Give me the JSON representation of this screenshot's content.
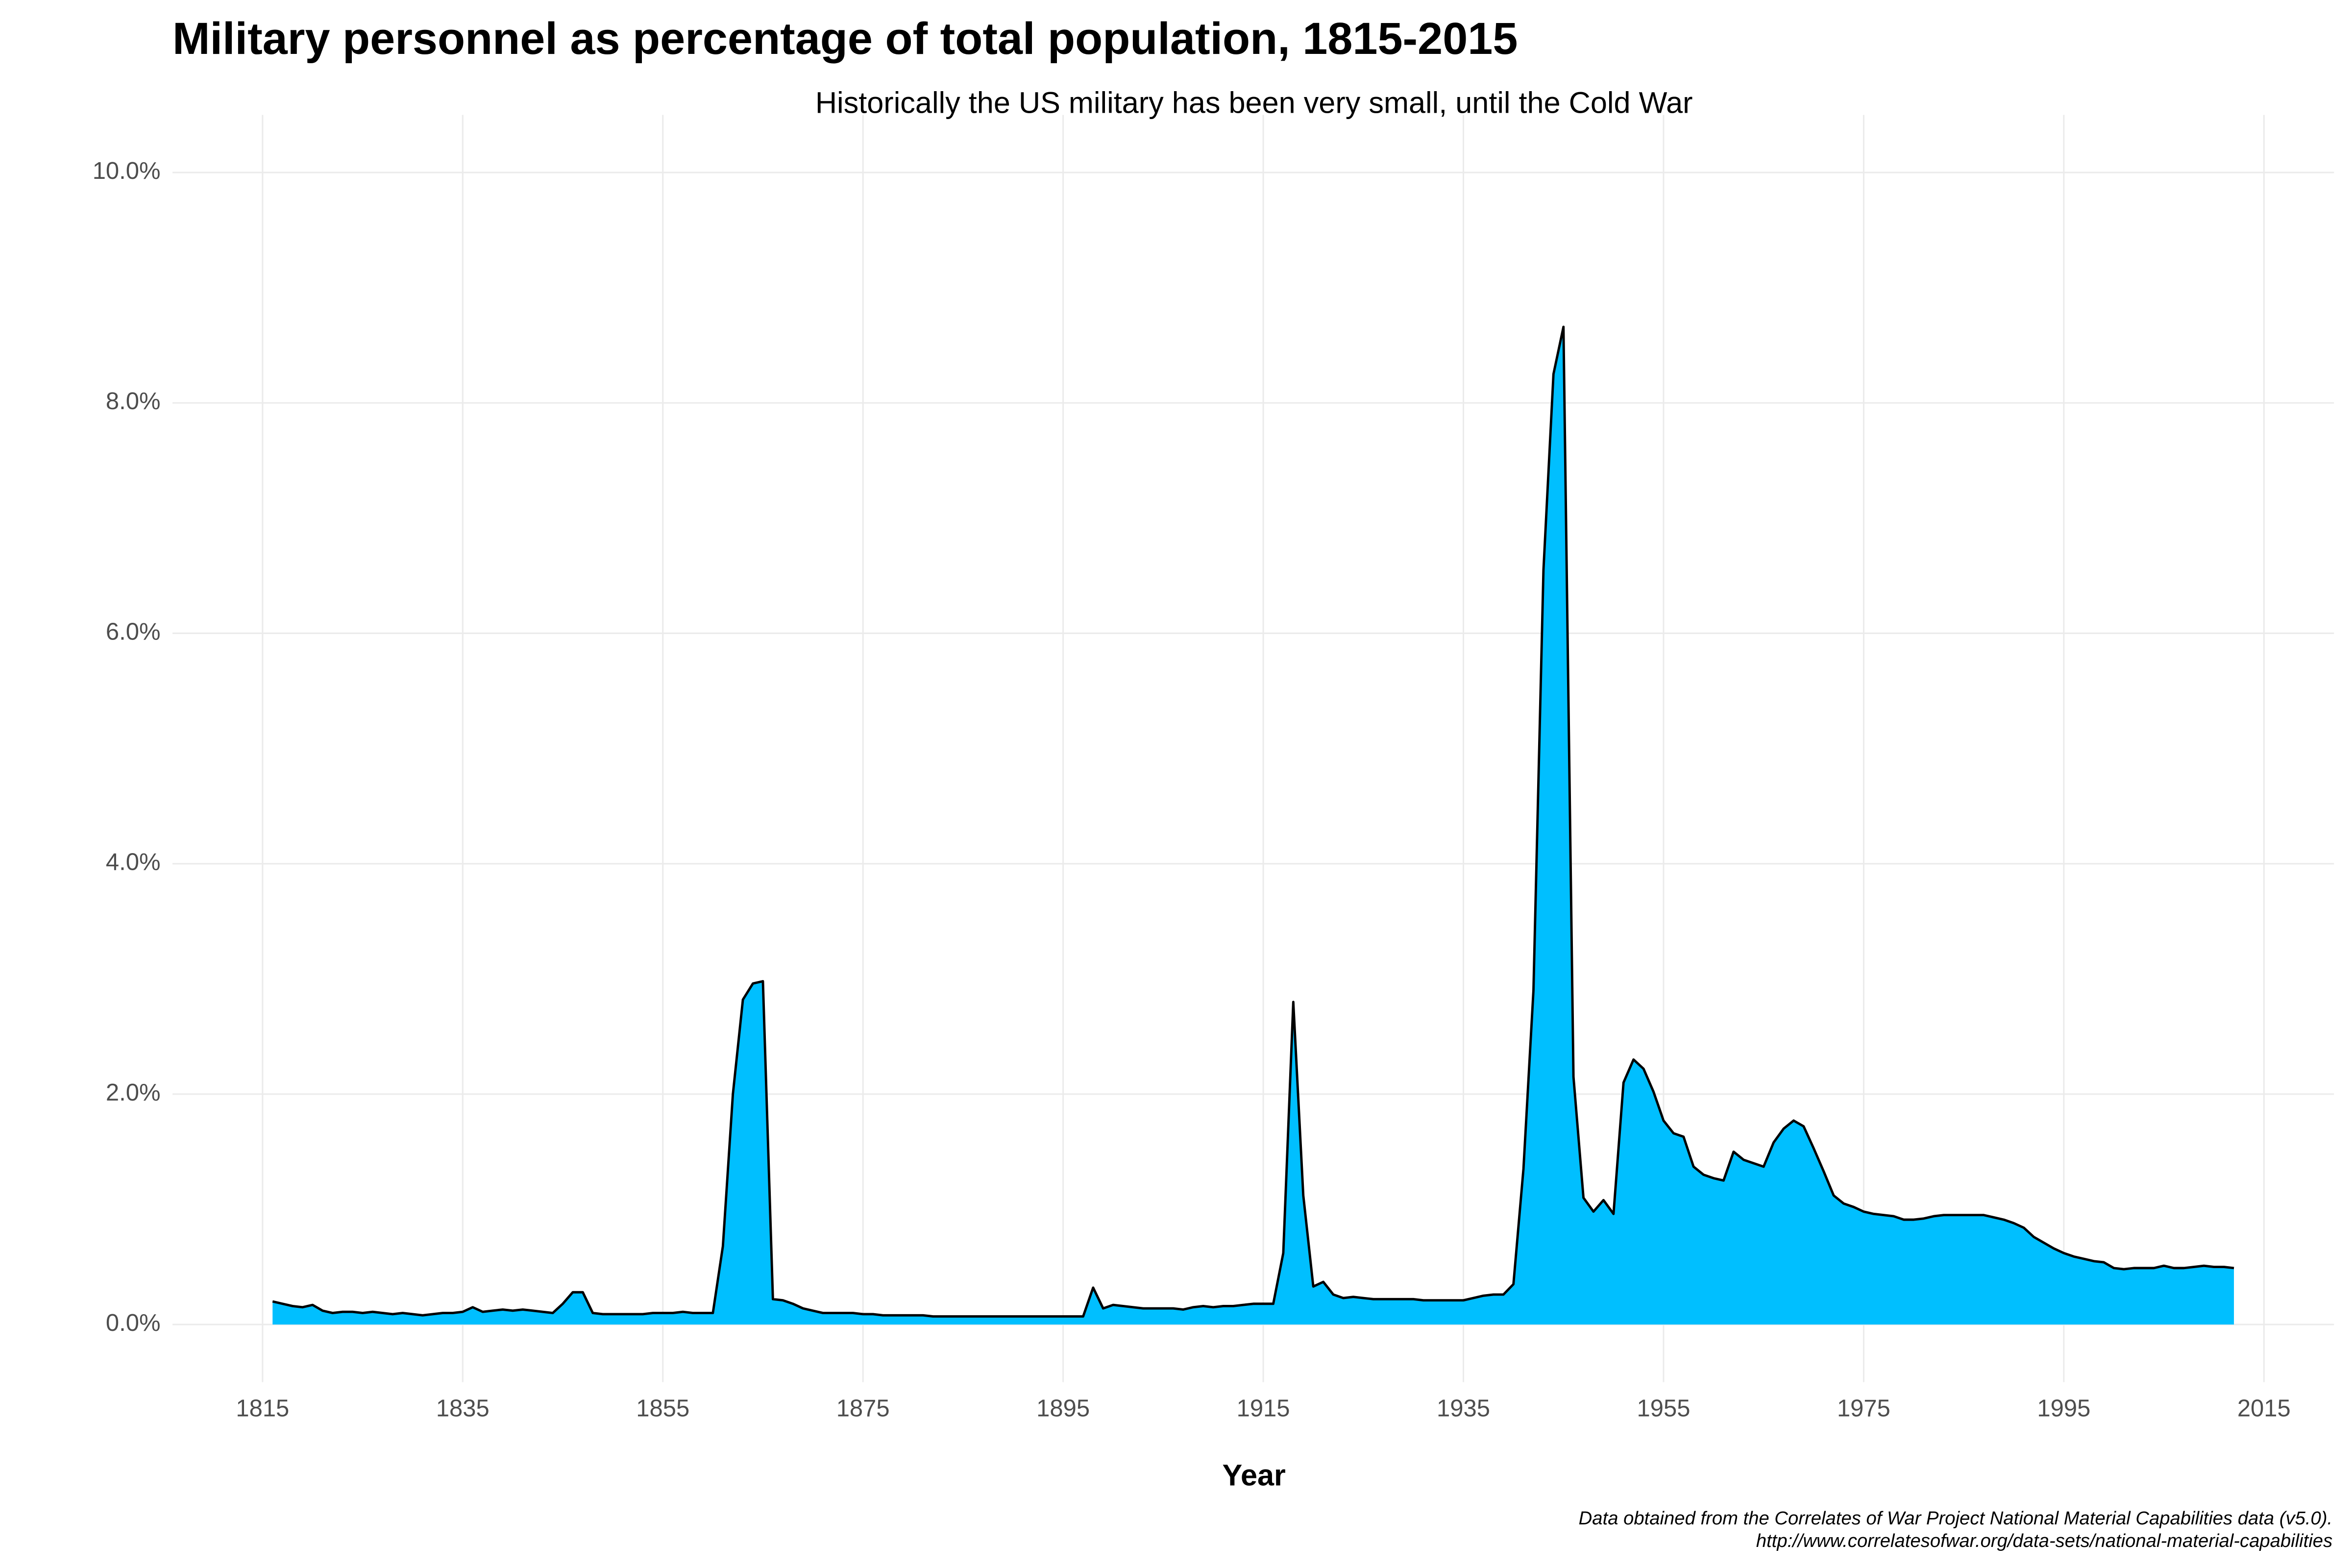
{
  "chart_data": {
    "type": "area",
    "title": "Military personnel as percentage of total population, 1815-2015",
    "subtitle": "Historically the US military has been very small, until the Cold War",
    "x_label": "Year",
    "caption": [
      "Data obtained from the Correlates of War Project National Material Capabilities data (v5.0).",
      "http://www.correlatesofwar.org/data-sets/national-material-capabilities"
    ],
    "color": "#00bfff",
    "line_color": "#000000",
    "grid": true,
    "xlim": [
      1806,
      2022
    ],
    "xticks": [
      1815,
      1835,
      1855,
      1875,
      1895,
      1915,
      1935,
      1955,
      1975,
      1995,
      2015
    ],
    "ylim": [
      -0.5,
      10.5
    ],
    "yticks": [
      {
        "value": 0,
        "label": "0.0%"
      },
      {
        "value": 2,
        "label": "2.0%"
      },
      {
        "value": 4,
        "label": "4.0%"
      },
      {
        "value": 6,
        "label": "6.0%"
      },
      {
        "value": 8,
        "label": "8.0%"
      },
      {
        "value": 10,
        "label": "10.0%"
      }
    ],
    "x": [
      1816,
      1817,
      1818,
      1819,
      1820,
      1821,
      1822,
      1823,
      1824,
      1825,
      1826,
      1827,
      1828,
      1829,
      1830,
      1831,
      1832,
      1833,
      1834,
      1835,
      1836,
      1837,
      1838,
      1839,
      1840,
      1841,
      1842,
      1843,
      1844,
      1845,
      1846,
      1847,
      1848,
      1849,
      1850,
      1851,
      1852,
      1853,
      1854,
      1855,
      1856,
      1857,
      1858,
      1859,
      1860,
      1861,
      1862,
      1863,
      1864,
      1865,
      1866,
      1867,
      1868,
      1869,
      1870,
      1871,
      1872,
      1873,
      1874,
      1875,
      1876,
      1877,
      1878,
      1879,
      1880,
      1881,
      1882,
      1883,
      1884,
      1885,
      1886,
      1887,
      1888,
      1889,
      1890,
      1891,
      1892,
      1893,
      1894,
      1895,
      1896,
      1897,
      1898,
      1899,
      1900,
      1901,
      1902,
      1903,
      1904,
      1905,
      1906,
      1907,
      1908,
      1909,
      1910,
      1911,
      1912,
      1913,
      1914,
      1915,
      1916,
      1917,
      1918,
      1919,
      1920,
      1921,
      1922,
      1923,
      1924,
      1925,
      1926,
      1927,
      1928,
      1929,
      1930,
      1931,
      1932,
      1933,
      1934,
      1935,
      1936,
      1937,
      1938,
      1939,
      1940,
      1941,
      1942,
      1943,
      1944,
      1945,
      1946,
      1947,
      1948,
      1949,
      1950,
      1951,
      1952,
      1953,
      1954,
      1955,
      1956,
      1957,
      1958,
      1959,
      1960,
      1961,
      1962,
      1963,
      1964,
      1965,
      1966,
      1967,
      1968,
      1969,
      1970,
      1971,
      1972,
      1973,
      1974,
      1975,
      1976,
      1977,
      1978,
      1979,
      1980,
      1981,
      1982,
      1983,
      1984,
      1985,
      1986,
      1987,
      1988,
      1989,
      1990,
      1991,
      1992,
      1993,
      1994,
      1995,
      1996,
      1997,
      1998,
      1999,
      2000,
      2001,
      2002,
      2003,
      2004,
      2005,
      2006,
      2007,
      2008,
      2009,
      2010,
      2011,
      2012
    ],
    "values": [
      0.2,
      0.18,
      0.16,
      0.15,
      0.17,
      0.12,
      0.1,
      0.11,
      0.11,
      0.1,
      0.11,
      0.1,
      0.09,
      0.1,
      0.09,
      0.08,
      0.09,
      0.1,
      0.1,
      0.11,
      0.15,
      0.11,
      0.12,
      0.13,
      0.12,
      0.13,
      0.12,
      0.11,
      0.1,
      0.18,
      0.28,
      0.28,
      0.1,
      0.09,
      0.09,
      0.09,
      0.09,
      0.09,
      0.1,
      0.1,
      0.1,
      0.11,
      0.1,
      0.1,
      0.1,
      0.68,
      2.0,
      2.82,
      2.96,
      2.98,
      0.22,
      0.21,
      0.18,
      0.14,
      0.12,
      0.1,
      0.1,
      0.1,
      0.1,
      0.09,
      0.09,
      0.08,
      0.08,
      0.08,
      0.08,
      0.08,
      0.07,
      0.07,
      0.07,
      0.07,
      0.07,
      0.07,
      0.07,
      0.07,
      0.07,
      0.07,
      0.07,
      0.07,
      0.07,
      0.07,
      0.07,
      0.07,
      0.32,
      0.14,
      0.17,
      0.16,
      0.15,
      0.14,
      0.14,
      0.14,
      0.14,
      0.13,
      0.15,
      0.16,
      0.15,
      0.16,
      0.16,
      0.17,
      0.18,
      0.18,
      0.18,
      0.62,
      2.8,
      1.12,
      0.33,
      0.37,
      0.26,
      0.23,
      0.24,
      0.23,
      0.22,
      0.22,
      0.22,
      0.22,
      0.22,
      0.21,
      0.21,
      0.21,
      0.21,
      0.21,
      0.23,
      0.25,
      0.26,
      0.26,
      0.35,
      1.35,
      2.9,
      6.55,
      8.25,
      8.66,
      2.15,
      1.1,
      0.98,
      1.08,
      0.96,
      2.1,
      2.3,
      2.22,
      2.02,
      1.77,
      1.66,
      1.63,
      1.37,
      1.3,
      1.27,
      1.25,
      1.5,
      1.43,
      1.4,
      1.37,
      1.58,
      1.7,
      1.77,
      1.72,
      1.53,
      1.33,
      1.12,
      1.05,
      1.02,
      0.98,
      0.96,
      0.95,
      0.94,
      0.91,
      0.91,
      0.92,
      0.94,
      0.95,
      0.95,
      0.95,
      0.95,
      0.95,
      0.93,
      0.91,
      0.88,
      0.84,
      0.76,
      0.71,
      0.66,
      0.62,
      0.59,
      0.57,
      0.55,
      0.54,
      0.49,
      0.48,
      0.49,
      0.49,
      0.49,
      0.51,
      0.49,
      0.49,
      0.5,
      0.51,
      0.5,
      0.5,
      0.49
    ]
  }
}
